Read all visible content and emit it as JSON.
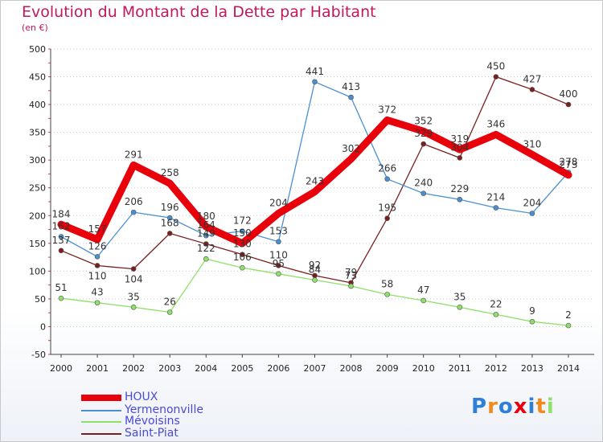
{
  "chart_data": {
    "type": "line",
    "title": "Evolution du Montant de la Dette par Habitant",
    "subtitle": "(en €)",
    "xlabel": "",
    "ylabel": "",
    "categories": [
      "2000",
      "2001",
      "2002",
      "2003",
      "2004",
      "2005",
      "2006",
      "2007",
      "2008",
      "2009",
      "2010",
      "2011",
      "2012",
      "2013",
      "2014"
    ],
    "ylim": [
      -50,
      500
    ],
    "yticks": [
      "-50",
      "0",
      "50",
      "100",
      "150",
      "200",
      "250",
      "300",
      "350",
      "400",
      "450",
      "500"
    ],
    "grid": "horizontal dotted",
    "series": [
      {
        "name": "HOUX",
        "color": "#e8000b",
        "values": [
          184,
          157,
          291,
          258,
          180,
          150,
          204,
          243,
          302,
          372,
          352,
          319,
          346,
          310,
          273
        ]
      },
      {
        "name": "Yermenonville",
        "color": "#4a90d0",
        "values": [
          162,
          126,
          206,
          196,
          164,
          172,
          153,
          441,
          413,
          266,
          240,
          229,
          214,
          204,
          278
        ]
      },
      {
        "name": "Mévoisins",
        "color": "#8ee06a",
        "values": [
          51,
          43,
          35,
          26,
          122,
          106,
          95,
          84,
          73,
          58,
          47,
          35,
          22,
          9,
          2
        ]
      },
      {
        "name": "Saint-Piat",
        "color": "#7a1f1f",
        "values": [
          137,
          110,
          104,
          168,
          149,
          130,
          110,
          92,
          79,
          195,
          329,
          304,
          450,
          427,
          400
        ]
      }
    ]
  },
  "branding": {
    "logo_text": "Proxiti"
  }
}
